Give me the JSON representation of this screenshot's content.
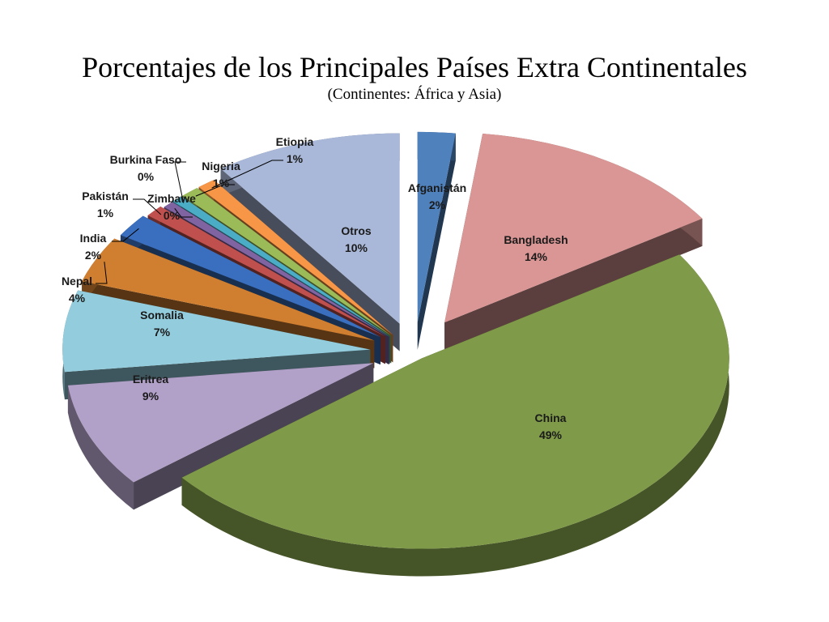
{
  "chart_data": {
    "type": "pie",
    "title": "Porcentajes de los Principales Países Extra Continentales",
    "subtitle": "(Continentes:  África y Asia)",
    "slices": [
      {
        "name": "Afganistán",
        "value": 2,
        "label": "2%",
        "color": "#4f81bd"
      },
      {
        "name": "Bangladesh",
        "value": 14,
        "label": "14%",
        "color": "#d99694"
      },
      {
        "name": "China",
        "value": 49,
        "label": "49%",
        "color": "#7f9a48"
      },
      {
        "name": "Eritrea",
        "value": 9,
        "label": "9%",
        "color": "#b1a0c7"
      },
      {
        "name": "Somalia",
        "value": 7,
        "label": "7%",
        "color": "#93cddd"
      },
      {
        "name": "Nepal",
        "value": 4,
        "label": "4%",
        "color": "#d07f30"
      },
      {
        "name": "India",
        "value": 2,
        "label": "2%",
        "color": "#3a6fbf"
      },
      {
        "name": "Pakistán",
        "value": 1,
        "label": "1%",
        "color": "#c0504d"
      },
      {
        "name": "Zimbawe",
        "value": 0,
        "label": "0%",
        "color": "#8064a2"
      },
      {
        "name": "Burkina Faso",
        "value": 0,
        "label": "0%",
        "color": "#4bacc6"
      },
      {
        "name": "Nigeria",
        "value": 1,
        "label": "1%",
        "color": "#9bbb59"
      },
      {
        "name": "Etiopia",
        "value": 1,
        "label": "1%",
        "color": "#f79646"
      },
      {
        "name": "Otros",
        "value": 10,
        "label": "10%",
        "color": "#a9b8d9"
      }
    ]
  }
}
